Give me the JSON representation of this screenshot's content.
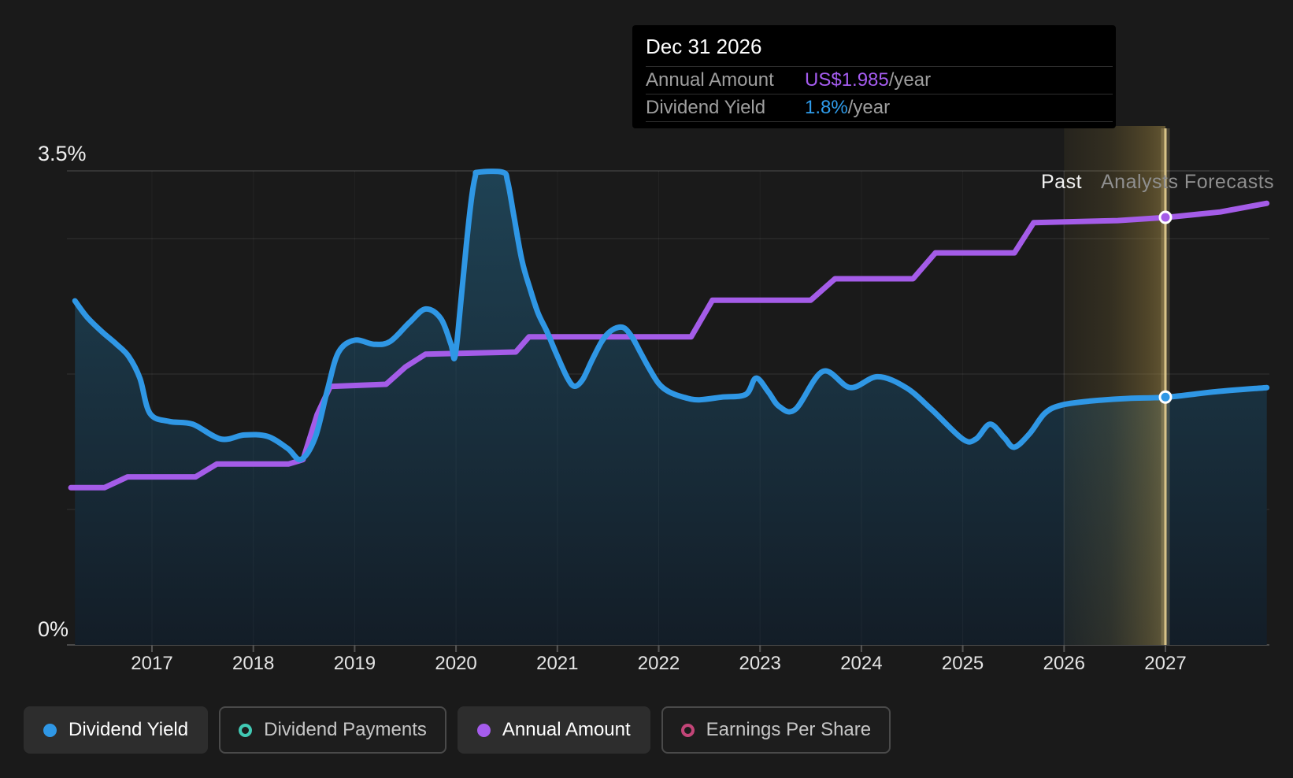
{
  "tooltip": {
    "date": "Dec 31 2026",
    "rows": [
      {
        "label": "Annual Amount",
        "value": "US$1.985",
        "suffix": "/year",
        "value_color": "#a55cf0"
      },
      {
        "label": "Dividend Yield",
        "value": "1.8%",
        "suffix": "/year",
        "value_color": "#2f9ceb"
      }
    ]
  },
  "chart": {
    "y_axis": {
      "top_label": "3.5%",
      "bottom_label": "0%"
    },
    "annotations": {
      "past": "Past",
      "forecast": "Analysts Forecasts"
    },
    "colors": {
      "background": "#1a1a1a",
      "dividend_yield": "#2f97e5",
      "annual_amount": "#a45ce8",
      "dividend_payments": "#41c9b4",
      "earnings_per_share": "#c34578",
      "forecast_band": "#8c7637",
      "hover_line": "#dec88c",
      "area_top": "#1f4254",
      "area_bottom": "#131d27",
      "grid": "#ffffff",
      "axis": "#4a4a4a"
    }
  },
  "chart_data": {
    "type": "line",
    "x_axis": {
      "years": [
        2017,
        2018,
        2019,
        2020,
        2021,
        2022,
        2023,
        2024,
        2025,
        2026,
        2027
      ],
      "range": [
        2016.2,
        2028.0
      ]
    },
    "y_axis": {
      "unit": "%",
      "min": 0,
      "max": 3.5,
      "gridlines_pct": [
        3.5,
        3,
        2,
        1
      ],
      "labeled_ticks": [
        "3.5%",
        "0%"
      ]
    },
    "forecast": {
      "divider_year": 2026,
      "hover_year": 2027,
      "past_label": "Past",
      "forecast_label": "Analysts Forecasts"
    },
    "hover_point": {
      "date": "Dec 31 2026",
      "annual_amount_usd_per_year": 1.985,
      "dividend_yield_pct_per_year": 1.8
    },
    "series": [
      {
        "name": "Dividend Yield",
        "unit": "%",
        "color": "#2f97e5",
        "area": true,
        "smooth": true,
        "visible": true,
        "points": [
          [
            2016.24,
            2.54
          ],
          [
            2016.36,
            2.42
          ],
          [
            2016.51,
            2.31
          ],
          [
            2016.65,
            2.22
          ],
          [
            2016.77,
            2.13
          ],
          [
            2016.88,
            1.97
          ],
          [
            2016.98,
            1.71
          ],
          [
            2017.17,
            1.65
          ],
          [
            2017.4,
            1.63
          ],
          [
            2017.68,
            1.52
          ],
          [
            2017.91,
            1.55
          ],
          [
            2018.14,
            1.54
          ],
          [
            2018.34,
            1.45
          ],
          [
            2018.47,
            1.37
          ],
          [
            2018.61,
            1.53
          ],
          [
            2018.73,
            1.88
          ],
          [
            2018.84,
            2.16
          ],
          [
            2019.0,
            2.25
          ],
          [
            2019.19,
            2.22
          ],
          [
            2019.35,
            2.24
          ],
          [
            2019.54,
            2.38
          ],
          [
            2019.7,
            2.48
          ],
          [
            2019.85,
            2.41
          ],
          [
            2019.95,
            2.22
          ],
          [
            2019.99,
            2.13
          ],
          [
            2020.05,
            2.55
          ],
          [
            2020.1,
            2.94
          ],
          [
            2020.15,
            3.28
          ],
          [
            2020.19,
            3.46
          ],
          [
            2020.22,
            3.49
          ],
          [
            2020.46,
            3.49
          ],
          [
            2020.51,
            3.42
          ],
          [
            2020.57,
            3.17
          ],
          [
            2020.65,
            2.84
          ],
          [
            2020.73,
            2.63
          ],
          [
            2020.81,
            2.45
          ],
          [
            2020.9,
            2.31
          ],
          [
            2020.99,
            2.15
          ],
          [
            2021.1,
            1.97
          ],
          [
            2021.17,
            1.91
          ],
          [
            2021.25,
            1.96
          ],
          [
            2021.34,
            2.1
          ],
          [
            2021.43,
            2.23
          ],
          [
            2021.5,
            2.3
          ],
          [
            2021.58,
            2.34
          ],
          [
            2021.66,
            2.34
          ],
          [
            2021.74,
            2.27
          ],
          [
            2021.82,
            2.16
          ],
          [
            2021.9,
            2.05
          ],
          [
            2022.0,
            1.93
          ],
          [
            2022.1,
            1.87
          ],
          [
            2022.24,
            1.83
          ],
          [
            2022.39,
            1.81
          ],
          [
            2022.63,
            1.83
          ],
          [
            2022.86,
            1.85
          ],
          [
            2022.96,
            1.97
          ],
          [
            2023.08,
            1.87
          ],
          [
            2023.19,
            1.76
          ],
          [
            2023.35,
            1.74
          ],
          [
            2023.62,
            2.02
          ],
          [
            2023.89,
            1.9
          ],
          [
            2024.16,
            1.98
          ],
          [
            2024.44,
            1.9
          ],
          [
            2024.69,
            1.74
          ],
          [
            2025.0,
            1.52
          ],
          [
            2025.13,
            1.52
          ],
          [
            2025.27,
            1.63
          ],
          [
            2025.41,
            1.53
          ],
          [
            2025.51,
            1.46
          ],
          [
            2025.66,
            1.56
          ],
          [
            2025.81,
            1.71
          ],
          [
            2025.97,
            1.77
          ],
          [
            2026.25,
            1.8
          ],
          [
            2026.63,
            1.82
          ],
          [
            2027.02,
            1.83
          ],
          [
            2027.5,
            1.87
          ],
          [
            2028.0,
            1.9
          ]
        ]
      },
      {
        "name": "Annual Amount",
        "unit": "US$/year",
        "color": "#a45ce8",
        "area": false,
        "smooth": false,
        "visible": true,
        "points": [
          [
            2016.2,
            0.73
          ],
          [
            2016.53,
            0.73
          ],
          [
            2016.76,
            0.78
          ],
          [
            2017.43,
            0.78
          ],
          [
            2017.64,
            0.84
          ],
          [
            2018.35,
            0.84
          ],
          [
            2018.49,
            0.86
          ],
          [
            2018.63,
            1.07
          ],
          [
            2018.76,
            1.2
          ],
          [
            2019.31,
            1.21
          ],
          [
            2019.5,
            1.29
          ],
          [
            2019.7,
            1.35
          ],
          [
            2020.59,
            1.36
          ],
          [
            2020.72,
            1.43
          ],
          [
            2022.32,
            1.43
          ],
          [
            2022.53,
            1.6
          ],
          [
            2023.5,
            1.6
          ],
          [
            2023.74,
            1.7
          ],
          [
            2024.51,
            1.7
          ],
          [
            2024.73,
            1.82
          ],
          [
            2025.51,
            1.82
          ],
          [
            2025.7,
            1.96
          ],
          [
            2026.53,
            1.97
          ],
          [
            2027.02,
            1.985
          ],
          [
            2027.54,
            2.01
          ],
          [
            2028.0,
            2.05
          ]
        ]
      },
      {
        "name": "Dividend Payments",
        "unit": "US$",
        "color": "#41c9b4",
        "visible": false,
        "points": []
      },
      {
        "name": "Earnings Per Share",
        "unit": "US$",
        "color": "#c34578",
        "visible": false,
        "points": []
      }
    ]
  },
  "legend": {
    "items": [
      {
        "label": "Dividend Yield",
        "style": "dot",
        "active": true,
        "color": "#2f97e5"
      },
      {
        "label": "Dividend Payments",
        "style": "ring",
        "active": false,
        "color": "#41c9b4"
      },
      {
        "label": "Annual Amount",
        "style": "dot",
        "active": true,
        "color": "#a55cec"
      },
      {
        "label": "Earnings Per Share",
        "style": "ring",
        "active": false,
        "color": "#c34578"
      }
    ]
  }
}
